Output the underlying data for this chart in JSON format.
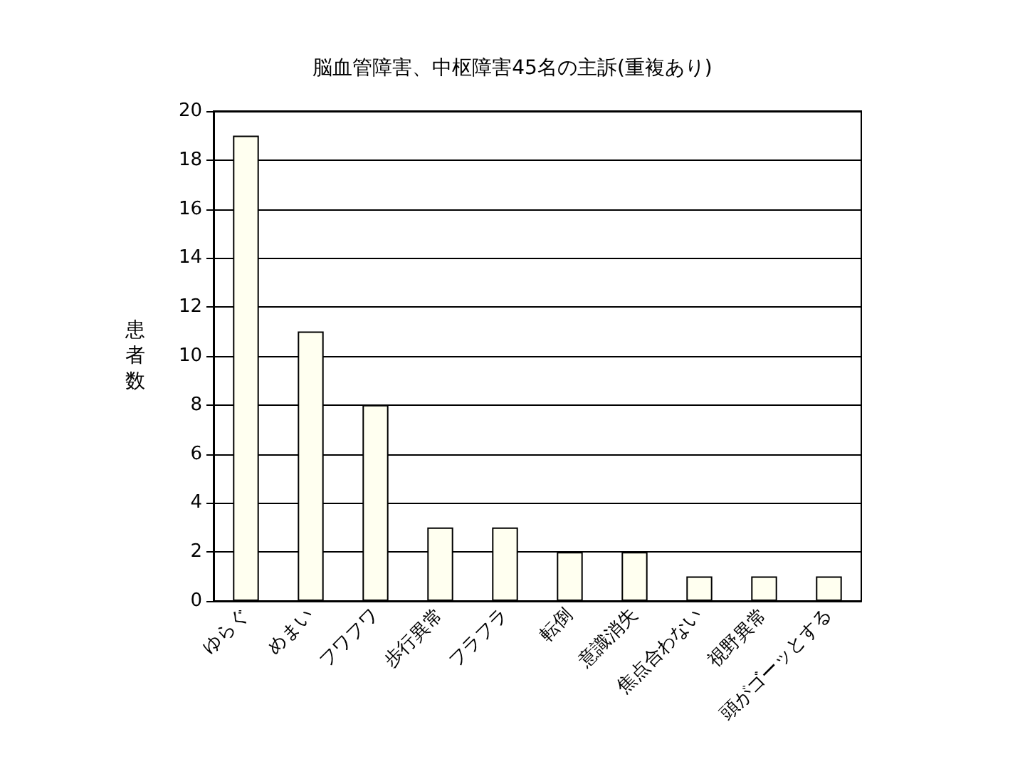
{
  "chart_data": {
    "type": "bar",
    "title": "脳血管障害、中枢障害45名の主訴(重複あり)",
    "ylabel": "患者数",
    "categories": [
      "ゆらぐ",
      "めまい",
      "フワフワ",
      "歩行異常",
      "フラフラ",
      "転倒",
      "意識消失",
      "焦点合わない",
      "視野異常",
      "頭がゴーッとする"
    ],
    "values": [
      19,
      11,
      8,
      3,
      3,
      2,
      2,
      1,
      1,
      1
    ],
    "color": "#fffff0",
    "ylim": [
      0,
      20
    ],
    "yticks": [
      0,
      2,
      4,
      6,
      8,
      10,
      12,
      14,
      16,
      18,
      20
    ],
    "grid": "y"
  }
}
